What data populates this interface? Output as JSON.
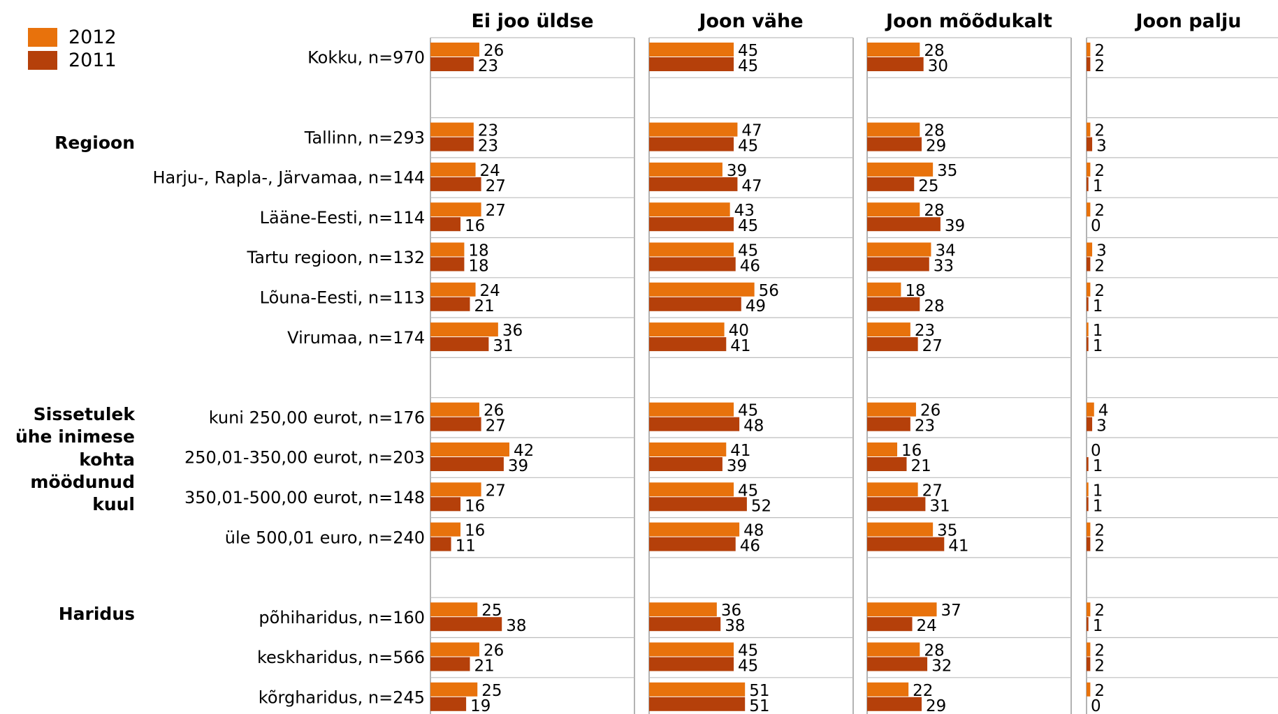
{
  "legend": [
    {
      "name": "2012",
      "color": "#E8720C"
    },
    {
      "name": "2011",
      "color": "#B5400A"
    }
  ],
  "chart_data": {
    "type": "bar",
    "orientation": "horizontal",
    "grouped": true,
    "xlim": [
      0,
      100
    ],
    "panels": [
      "Ei joo üldse",
      "Joon vähe",
      "Joon mõõdukalt",
      "Joon palju"
    ],
    "group_labels": [
      {
        "lines": [
          "Regioon"
        ]
      },
      {
        "lines": [
          "Sissetulek",
          "ühe inimese",
          "kohta",
          "möödunud",
          "kuul"
        ]
      },
      {
        "lines": [
          "Haridus"
        ]
      }
    ],
    "rows": [
      {
        "label": "Kokku, n=970",
        "v2012": [
          26,
          45,
          28,
          2
        ],
        "v2011": [
          23,
          45,
          30,
          2
        ]
      },
      {
        "label": "",
        "spacer": true
      },
      {
        "label": "Tallinn, n=293",
        "v2012": [
          23,
          47,
          28,
          2
        ],
        "v2011": [
          23,
          45,
          29,
          3
        ]
      },
      {
        "label": "Harju-, Rapla-, Järvamaa, n=144",
        "v2012": [
          24,
          39,
          35,
          2
        ],
        "v2011": [
          27,
          47,
          25,
          1
        ]
      },
      {
        "label": "Lääne-Eesti, n=114",
        "v2012": [
          27,
          43,
          28,
          2
        ],
        "v2011": [
          16,
          45,
          39,
          0
        ]
      },
      {
        "label": "Tartu regioon, n=132",
        "v2012": [
          18,
          45,
          34,
          3
        ],
        "v2011": [
          18,
          46,
          33,
          2
        ]
      },
      {
        "label": "Lõuna-Eesti, n=113",
        "v2012": [
          24,
          56,
          18,
          2
        ],
        "v2011": [
          21,
          49,
          28,
          1
        ]
      },
      {
        "label": "Virumaa, n=174",
        "v2012": [
          36,
          40,
          23,
          1
        ],
        "v2011": [
          31,
          41,
          27,
          1
        ]
      },
      {
        "label": "",
        "spacer": true
      },
      {
        "label": "kuni 250,00 eurot, n=176",
        "v2012": [
          26,
          45,
          26,
          4
        ],
        "v2011": [
          27,
          48,
          23,
          3
        ]
      },
      {
        "label": "250,01-350,00 eurot, n=203",
        "v2012": [
          42,
          41,
          16,
          0
        ],
        "v2011": [
          39,
          39,
          21,
          1
        ]
      },
      {
        "label": "350,01-500,00 eurot, n=148",
        "v2012": [
          27,
          45,
          27,
          1
        ],
        "v2011": [
          16,
          52,
          31,
          1
        ]
      },
      {
        "label": "üle 500,01 euro, n=240",
        "v2012": [
          16,
          48,
          35,
          2
        ],
        "v2011": [
          11,
          46,
          41,
          2
        ]
      },
      {
        "label": "",
        "spacer": true
      },
      {
        "label": "põhiharidus, n=160",
        "v2012": [
          25,
          36,
          37,
          2
        ],
        "v2011": [
          38,
          38,
          24,
          1
        ]
      },
      {
        "label": "keskharidus, n=566",
        "v2012": [
          26,
          45,
          28,
          2
        ],
        "v2011": [
          21,
          45,
          32,
          2
        ]
      },
      {
        "label": "kõrgharidus, n=245",
        "v2012": [
          25,
          51,
          22,
          2
        ],
        "v2011": [
          19,
          51,
          29,
          0
        ]
      }
    ]
  }
}
